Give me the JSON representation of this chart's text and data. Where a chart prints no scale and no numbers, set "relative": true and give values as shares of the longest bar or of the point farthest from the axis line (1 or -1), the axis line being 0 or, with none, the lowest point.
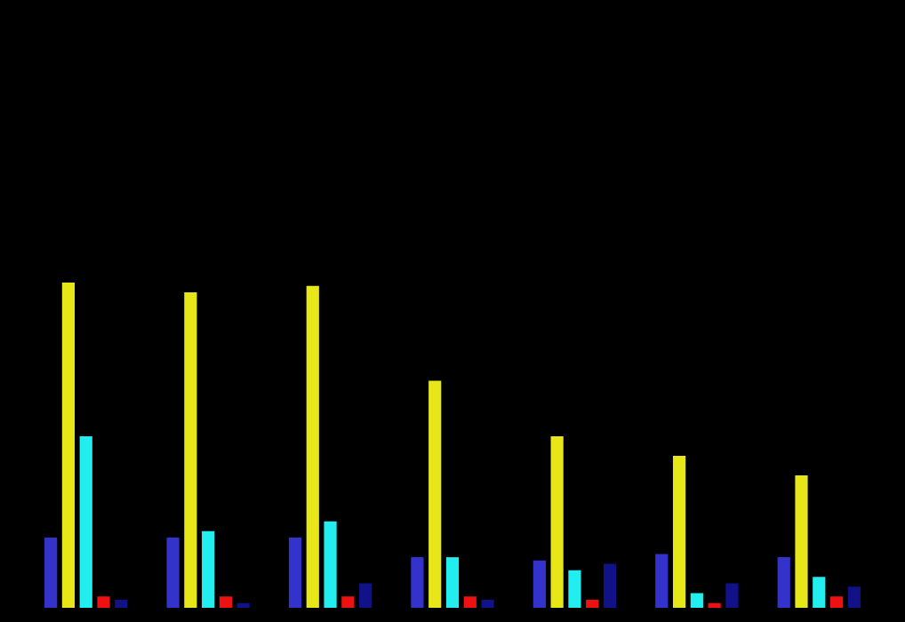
{
  "chart_data": {
    "type": "bar",
    "relative": true,
    "legend": false,
    "categories": [
      null,
      null,
      null,
      null,
      null,
      null,
      null
    ],
    "series": [
      {
        "color": "#3333cc",
        "values": [
          0.22,
          0.22,
          0.22,
          0.16,
          0.15,
          0.17,
          0.16
        ]
      },
      {
        "color": "#e6e619",
        "values": [
          1,
          0.97,
          0.99,
          0.7,
          0.53,
          0.47,
          0.41
        ]
      },
      {
        "color": "#22eef0",
        "values": [
          0.53,
          0.24,
          0.27,
          0.16,
          0.12,
          0.05,
          0.1
        ]
      },
      {
        "color": "#ee1111",
        "values": [
          0.04,
          0.04,
          0.04,
          0.04,
          0.03,
          0.02,
          0.04
        ]
      },
      {
        "color": "#111188",
        "values": [
          0.03,
          0.02,
          0.08,
          0.03,
          0.14,
          0.08,
          0.07
        ]
      }
    ]
  }
}
